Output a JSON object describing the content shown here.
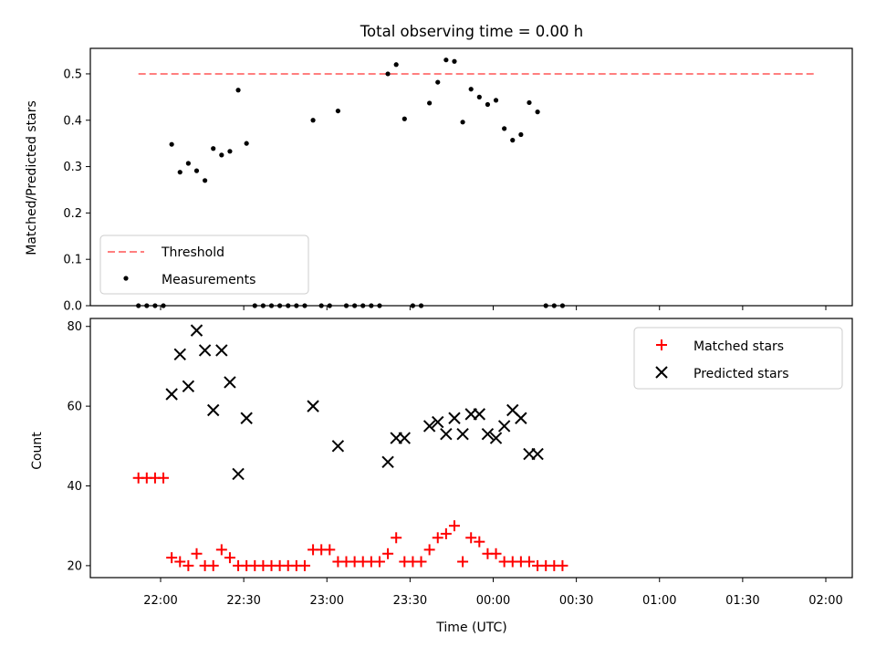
{
  "chart_data": [
    {
      "type": "scatter",
      "title": "Total observing time = 0.00 h",
      "xlabel": "",
      "ylabel": "Matched/Predicted stars",
      "ylim": [
        0,
        0.555
      ],
      "yticks": [
        "0.0",
        "0.1",
        "0.2",
        "0.3",
        "0.4",
        "0.5"
      ],
      "threshold": {
        "name": "Threshold",
        "value": 0.5,
        "color": "#ff7f7f",
        "x_from": "21:52",
        "x_to": "01:56"
      },
      "legend": {
        "placement": "lower-left",
        "entries": [
          "Threshold",
          "Measurements"
        ]
      },
      "series": [
        {
          "name": "Measurements",
          "color": "#000000",
          "points": [
            [
              "21:52",
              0
            ],
            [
              "21:55",
              0
            ],
            [
              "21:58",
              0
            ],
            [
              "22:01",
              0
            ],
            [
              "22:04",
              0.348
            ],
            [
              "22:07",
              0.288
            ],
            [
              "22:10",
              0.307
            ],
            [
              "22:13",
              0.291
            ],
            [
              "22:16",
              0.27
            ],
            [
              "22:19",
              0.339
            ],
            [
              "22:22",
              0.325
            ],
            [
              "22:25",
              0.333
            ],
            [
              "22:28",
              0.465
            ],
            [
              "22:31",
              0.35
            ],
            [
              "22:34",
              0
            ],
            [
              "22:37",
              0
            ],
            [
              "22:40",
              0
            ],
            [
              "22:43",
              0
            ],
            [
              "22:46",
              0
            ],
            [
              "22:49",
              0
            ],
            [
              "22:52",
              0
            ],
            [
              "22:55",
              0.4
            ],
            [
              "22:58",
              0
            ],
            [
              "23:01",
              0
            ],
            [
              "23:04",
              0.42
            ],
            [
              "23:07",
              0
            ],
            [
              "23:10",
              0
            ],
            [
              "23:13",
              0
            ],
            [
              "23:16",
              0
            ],
            [
              "23:19",
              0
            ],
            [
              "23:22",
              0.5
            ],
            [
              "23:25",
              0.52
            ],
            [
              "23:28",
              0.403
            ],
            [
              "23:31",
              0
            ],
            [
              "23:34",
              0
            ],
            [
              "23:37",
              0.437
            ],
            [
              "23:40",
              0.482
            ],
            [
              "23:43",
              0.53
            ],
            [
              "23:46",
              0.527
            ],
            [
              "23:49",
              0.396
            ],
            [
              "23:52",
              0.467
            ],
            [
              "23:55",
              0.45
            ],
            [
              "23:58",
              0.434
            ],
            [
              "00:01",
              0.443
            ],
            [
              "00:04",
              0.382
            ],
            [
              "00:07",
              0.357
            ],
            [
              "00:10",
              0.369
            ],
            [
              "00:13",
              0.438
            ],
            [
              "00:16",
              0.418
            ],
            [
              "00:19",
              0
            ],
            [
              "00:22",
              0
            ],
            [
              "00:25",
              0
            ]
          ]
        }
      ]
    },
    {
      "type": "scatter",
      "title": "",
      "xlabel": "Time (UTC)",
      "ylabel": "Count",
      "ylim": [
        17,
        82
      ],
      "yticks": [
        "20",
        "40",
        "60",
        "80"
      ],
      "xticks": [
        "22:00",
        "22:30",
        "23:00",
        "23:30",
        "00:00",
        "00:30",
        "01:00",
        "01:30",
        "02:00"
      ],
      "legend": {
        "placement": "upper-right",
        "entries": [
          "Matched stars",
          "Predicted stars"
        ]
      },
      "series": [
        {
          "name": "Matched stars",
          "color": "#ff0000",
          "marker": "plus",
          "points": [
            [
              "21:52",
              42
            ],
            [
              "21:55",
              42
            ],
            [
              "21:58",
              42
            ],
            [
              "22:01",
              42
            ],
            [
              "22:04",
              22
            ],
            [
              "22:07",
              21
            ],
            [
              "22:10",
              20
            ],
            [
              "22:13",
              23
            ],
            [
              "22:16",
              20
            ],
            [
              "22:19",
              20
            ],
            [
              "22:22",
              24
            ],
            [
              "22:25",
              22
            ],
            [
              "22:28",
              20
            ],
            [
              "22:31",
              20
            ],
            [
              "22:34",
              20
            ],
            [
              "22:37",
              20
            ],
            [
              "22:40",
              20
            ],
            [
              "22:43",
              20
            ],
            [
              "22:46",
              20
            ],
            [
              "22:49",
              20
            ],
            [
              "22:52",
              20
            ],
            [
              "22:55",
              24
            ],
            [
              "22:58",
              24
            ],
            [
              "23:01",
              24
            ],
            [
              "23:04",
              21
            ],
            [
              "23:07",
              21
            ],
            [
              "23:10",
              21
            ],
            [
              "23:13",
              21
            ],
            [
              "23:16",
              21
            ],
            [
              "23:19",
              21
            ],
            [
              "23:22",
              23
            ],
            [
              "23:25",
              27
            ],
            [
              "23:28",
              21
            ],
            [
              "23:31",
              21
            ],
            [
              "23:34",
              21
            ],
            [
              "23:37",
              24
            ],
            [
              "23:40",
              27
            ],
            [
              "23:43",
              28
            ],
            [
              "23:46",
              30
            ],
            [
              "23:49",
              21
            ],
            [
              "23:52",
              27
            ],
            [
              "23:55",
              26
            ],
            [
              "23:58",
              23
            ],
            [
              "00:01",
              23
            ],
            [
              "00:04",
              21
            ],
            [
              "00:07",
              21
            ],
            [
              "00:10",
              21
            ],
            [
              "00:13",
              21
            ],
            [
              "00:16",
              20
            ],
            [
              "00:19",
              20
            ],
            [
              "00:22",
              20
            ],
            [
              "00:25",
              20
            ]
          ]
        },
        {
          "name": "Predicted stars",
          "color": "#000000",
          "marker": "x",
          "points": [
            [
              "22:04",
              63
            ],
            [
              "22:07",
              73
            ],
            [
              "22:10",
              65
            ],
            [
              "22:13",
              79
            ],
            [
              "22:16",
              74
            ],
            [
              "22:19",
              59
            ],
            [
              "22:22",
              74
            ],
            [
              "22:25",
              66
            ],
            [
              "22:28",
              43
            ],
            [
              "22:31",
              57
            ],
            [
              "22:55",
              60
            ],
            [
              "23:04",
              50
            ],
            [
              "23:22",
              46
            ],
            [
              "23:25",
              52
            ],
            [
              "23:28",
              52
            ],
            [
              "23:37",
              55
            ],
            [
              "23:40",
              56
            ],
            [
              "23:43",
              53
            ],
            [
              "23:46",
              57
            ],
            [
              "23:49",
              53
            ],
            [
              "23:52",
              58
            ],
            [
              "23:55",
              58
            ],
            [
              "23:58",
              53
            ],
            [
              "00:01",
              52
            ],
            [
              "00:04",
              55
            ],
            [
              "00:07",
              59
            ],
            [
              "00:10",
              57
            ],
            [
              "00:13",
              48
            ],
            [
              "00:16",
              48
            ]
          ]
        }
      ]
    }
  ]
}
